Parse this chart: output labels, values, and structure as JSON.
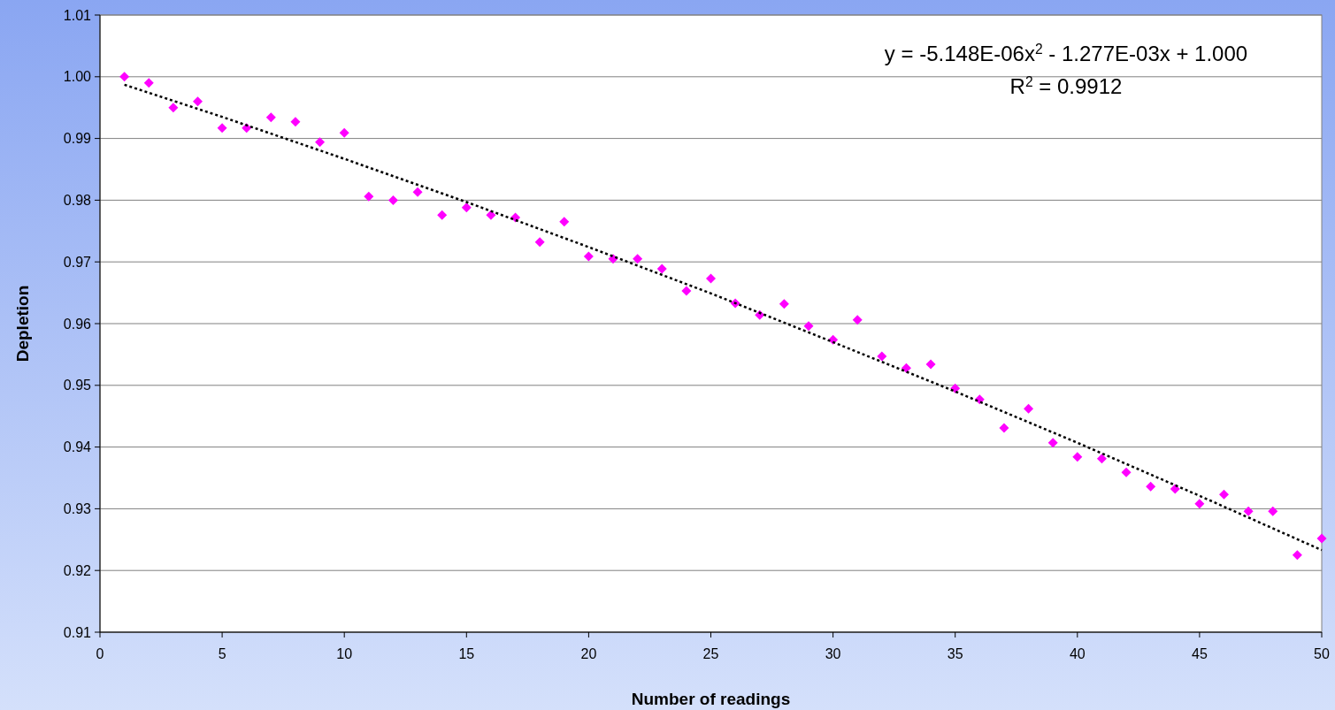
{
  "chart_data": {
    "type": "scatter",
    "xlabel": "Number of readings",
    "ylabel": "Depletion",
    "xlim": [
      0,
      50
    ],
    "xticks": [
      0,
      5,
      10,
      15,
      20,
      25,
      30,
      35,
      40,
      45,
      50
    ],
    "ylim": [
      0.91,
      1.01
    ],
    "yticks": [
      {
        "value": 0.91,
        "label": "0.91"
      },
      {
        "value": 0.92,
        "label": "0.92"
      },
      {
        "value": 0.93,
        "label": "0.93"
      },
      {
        "value": 0.94,
        "label": "0.94"
      },
      {
        "value": 0.95,
        "label": "0.95"
      },
      {
        "value": 0.96,
        "label": "0.96"
      },
      {
        "value": 0.97,
        "label": "0.97"
      },
      {
        "value": 0.98,
        "label": "0.98"
      },
      {
        "value": 0.99,
        "label": "0.99"
      },
      {
        "value": 1.0,
        "label": "1.00"
      },
      {
        "value": 1.01,
        "label": "1.01"
      }
    ],
    "grid": "y",
    "marker": "diamond",
    "annotations": [
      "y = -5.148E-06x$^{2}$ - 1.277E-03x + 1.000",
      "R$^{2}$ = 0.9912"
    ],
    "series": [
      {
        "color": "#ff00ff",
        "x": [
          1,
          2,
          3,
          4,
          5,
          6,
          7,
          8,
          9,
          10,
          11,
          12,
          13,
          14,
          15,
          16,
          17,
          18,
          19,
          20,
          21,
          22,
          23,
          24,
          25,
          26,
          27,
          28,
          29,
          30,
          31,
          32,
          33,
          34,
          35,
          36,
          37,
          38,
          39,
          40,
          41,
          42,
          43,
          44,
          45,
          46,
          47,
          48,
          49,
          50
        ],
        "values": [
          1.0,
          0.999,
          0.995,
          0.996,
          0.9917,
          0.9917,
          0.9934,
          0.9927,
          0.9894,
          0.9909,
          0.9806,
          0.98,
          0.9813,
          0.9776,
          0.9788,
          0.9776,
          0.9772,
          0.9732,
          0.9765,
          0.9709,
          0.9705,
          0.9705,
          0.9689,
          0.9653,
          0.9673,
          0.9633,
          0.9614,
          0.9632,
          0.9596,
          0.9574,
          0.9606,
          0.9547,
          0.9528,
          0.9534,
          0.9495,
          0.9477,
          0.9431,
          0.9462,
          0.9407,
          0.9384,
          0.9381,
          0.9359,
          0.9336,
          0.9332,
          0.9308,
          0.9323,
          0.9296,
          0.9296,
          0.9225,
          0.9252
        ]
      },
      {
        "type": "line",
        "color": "#000000",
        "line_style": "dotted",
        "marker": "none",
        "x": [
          1,
          5,
          10,
          15,
          20,
          25,
          30,
          35,
          40,
          45,
          50
        ],
        "values": [
          0.9987,
          0.9935,
          0.9867,
          0.9797,
          0.9724,
          0.9649,
          0.957,
          0.949,
          0.9407,
          0.9321,
          0.9233
        ]
      }
    ]
  }
}
